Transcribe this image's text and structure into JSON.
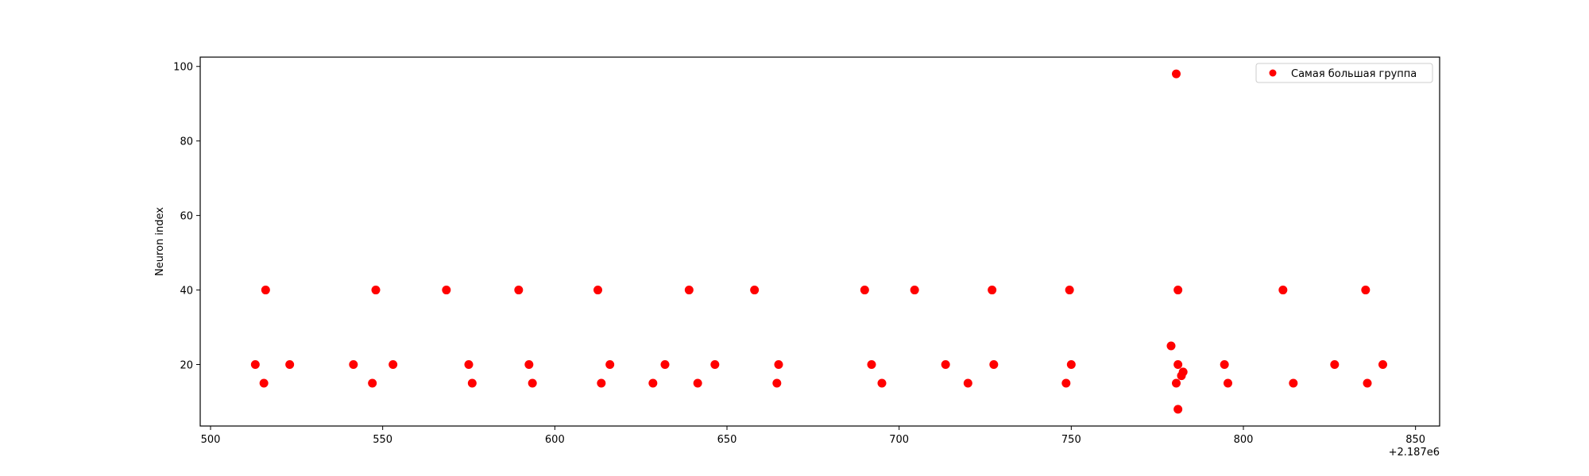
{
  "chart_data": {
    "type": "scatter",
    "title": "",
    "xlabel": "",
    "ylabel": "Neuron index",
    "x_offset_label": "+2.187e6",
    "xlim": [
      497,
      857
    ],
    "ylim": [
      3.5,
      102.5
    ],
    "xticks": [
      500,
      550,
      600,
      650,
      700,
      750,
      800,
      850
    ],
    "yticks": [
      20,
      40,
      60,
      80,
      100
    ],
    "grid": false,
    "legend": {
      "location": "top-right",
      "entries": [
        "Самая большая группа"
      ]
    },
    "series": [
      {
        "name": "Самая большая группа",
        "color": "#ff0000",
        "points": [
          [
            513,
            20
          ],
          [
            515.5,
            15
          ],
          [
            516,
            40
          ],
          [
            523,
            20
          ],
          [
            541.5,
            20
          ],
          [
            547,
            15
          ],
          [
            548,
            40
          ],
          [
            553,
            20
          ],
          [
            568.5,
            40
          ],
          [
            575,
            20
          ],
          [
            576,
            15
          ],
          [
            589.5,
            40
          ],
          [
            592.5,
            20
          ],
          [
            593.5,
            15
          ],
          [
            612.5,
            40
          ],
          [
            613.5,
            15
          ],
          [
            616,
            20
          ],
          [
            628.5,
            15
          ],
          [
            632,
            20
          ],
          [
            639,
            40
          ],
          [
            641.5,
            15
          ],
          [
            646.5,
            20
          ],
          [
            658,
            40
          ],
          [
            664.5,
            15
          ],
          [
            665,
            20
          ],
          [
            690,
            40
          ],
          [
            692,
            20
          ],
          [
            695,
            15
          ],
          [
            704.5,
            40
          ],
          [
            713.5,
            20
          ],
          [
            720,
            15
          ],
          [
            727,
            40
          ],
          [
            727.5,
            20
          ],
          [
            748.5,
            15
          ],
          [
            749.5,
            40
          ],
          [
            750,
            20
          ],
          [
            779,
            25
          ],
          [
            780.5,
            98
          ],
          [
            781,
            40
          ],
          [
            781,
            20
          ],
          [
            780.5,
            15
          ],
          [
            781,
            8
          ],
          [
            782,
            17
          ],
          [
            782.5,
            18
          ],
          [
            794.5,
            20
          ],
          [
            795.5,
            15
          ],
          [
            811.5,
            40
          ],
          [
            814.5,
            15
          ],
          [
            826.5,
            20
          ],
          [
            835.5,
            40
          ],
          [
            836,
            15
          ],
          [
            840.5,
            20
          ]
        ]
      }
    ]
  }
}
